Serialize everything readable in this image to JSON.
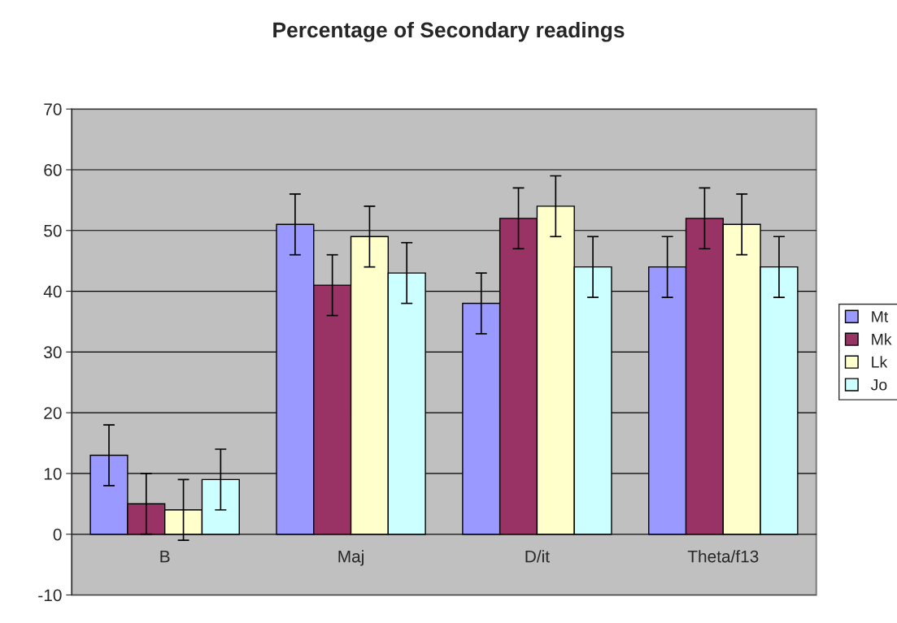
{
  "chart_data": {
    "type": "bar",
    "title": "Percentage of Secondary readings",
    "categories": [
      "B",
      "Maj",
      "D/it",
      "Theta/f13"
    ],
    "series": [
      {
        "name": "Mt",
        "color": "#9999ff",
        "values": [
          13,
          51,
          38,
          44
        ],
        "errors": [
          5,
          5,
          5,
          5
        ]
      },
      {
        "name": "Mk",
        "color": "#993366",
        "values": [
          5,
          41,
          52,
          52
        ],
        "errors": [
          5,
          5,
          5,
          5
        ]
      },
      {
        "name": "Lk",
        "color": "#ffffcc",
        "values": [
          4,
          49,
          54,
          51
        ],
        "errors": [
          5,
          5,
          5,
          5
        ]
      },
      {
        "name": "Jo",
        "color": "#ccffff",
        "values": [
          9,
          43,
          44,
          44
        ],
        "errors": [
          5,
          5,
          5,
          5
        ]
      }
    ],
    "ylim": [
      -10,
      70
    ],
    "yticks": [
      -10,
      0,
      10,
      20,
      30,
      40,
      50,
      60,
      70
    ],
    "grid": "y",
    "legend": "right"
  }
}
